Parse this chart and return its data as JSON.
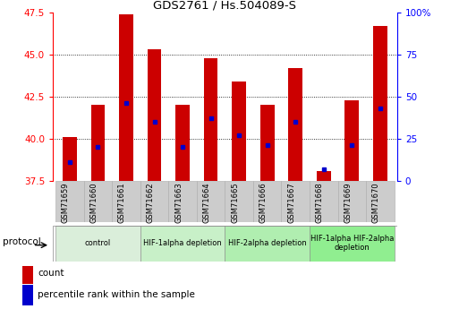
{
  "title": "GDS2761 / Hs.504089-S",
  "samples": [
    "GSM71659",
    "GSM71660",
    "GSM71661",
    "GSM71662",
    "GSM71663",
    "GSM71664",
    "GSM71665",
    "GSM71666",
    "GSM71667",
    "GSM71668",
    "GSM71669",
    "GSM71670"
  ],
  "count_values": [
    40.1,
    42.0,
    47.4,
    45.3,
    42.0,
    44.8,
    43.4,
    42.0,
    44.2,
    38.1,
    42.3,
    46.7
  ],
  "percentile_values": [
    38.6,
    39.5,
    42.1,
    41.0,
    39.5,
    41.2,
    40.2,
    39.6,
    41.0,
    38.2,
    39.6,
    41.8
  ],
  "ymin": 37.5,
  "ymax": 47.5,
  "yticks_left": [
    37.5,
    40.0,
    42.5,
    45.0,
    47.5
  ],
  "right_ytick_positions": [
    37.5,
    40.0,
    42.5,
    45.0,
    47.5
  ],
  "right_ytick_labels": [
    "0",
    "25",
    "50",
    "75",
    "100%"
  ],
  "bar_color": "#cc0000",
  "percentile_color": "#0000cc",
  "protocol_groups": [
    {
      "label": "control",
      "start": 0,
      "end": 2,
      "color": "#daeeda"
    },
    {
      "label": "HIF-1alpha depletion",
      "start": 3,
      "end": 5,
      "color": "#c8f0c8"
    },
    {
      "label": "HIF-2alpha depletion",
      "start": 6,
      "end": 8,
      "color": "#b0eeb0"
    },
    {
      "label": "HIF-1alpha HIF-2alpha\ndepletion",
      "start": 9,
      "end": 11,
      "color": "#90ee90"
    }
  ],
  "legend_count_label": "count",
  "legend_percentile_label": "percentile rank within the sample",
  "protocol_label": "protocol"
}
